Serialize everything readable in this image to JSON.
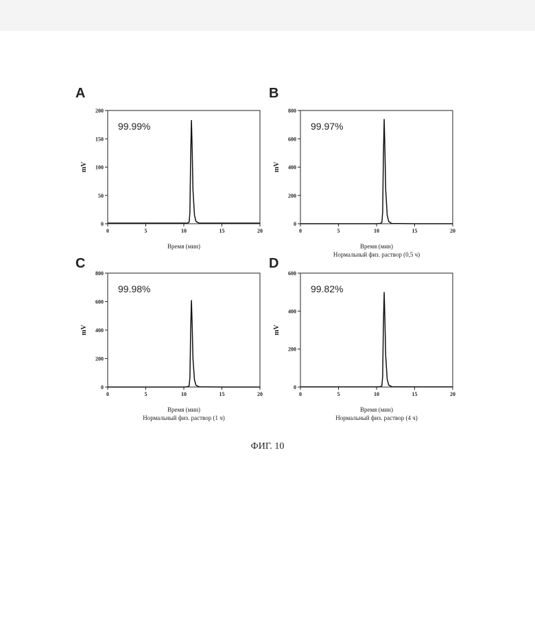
{
  "figure_caption": "ФИГ. 10",
  "chart_data": [
    {
      "type": "line",
      "panel_label": "A",
      "annotation": "99.99%",
      "x_label": "Время (мин)",
      "y_label": "mV",
      "x": [
        0,
        5,
        10,
        10.5,
        10.7,
        10.8,
        10.9,
        11,
        11.1,
        11.2,
        11.4,
        11.6,
        12,
        15,
        20
      ],
      "values": [
        1,
        1,
        1,
        1,
        3,
        20,
        120,
        183,
        130,
        60,
        15,
        4,
        1,
        1,
        1
      ],
      "color": "#111111",
      "xlim": [
        0,
        20
      ],
      "xticks": [
        0,
        5,
        10,
        15,
        20
      ],
      "ylim": [
        0,
        200
      ],
      "yticks": [
        0,
        50,
        100,
        150,
        200
      ]
    },
    {
      "type": "line",
      "panel_label": "B",
      "annotation": "99.97%",
      "x_label": "Время (мин)",
      "subtitle": "Нормальный физ. раствор (0,5 ч)",
      "y_label": "mV",
      "x": [
        0,
        5,
        10,
        10.5,
        10.7,
        10.8,
        10.9,
        11,
        11.1,
        11.2,
        11.4,
        11.6,
        12,
        15,
        20
      ],
      "values": [
        0,
        0,
        0,
        2,
        10,
        80,
        480,
        740,
        520,
        240,
        60,
        15,
        2,
        0,
        0
      ],
      "color": "#111111",
      "xlim": [
        0,
        20
      ],
      "xticks": [
        0,
        5,
        10,
        15,
        20
      ],
      "ylim": [
        0,
        800
      ],
      "yticks": [
        0,
        200,
        400,
        600,
        800
      ]
    },
    {
      "type": "line",
      "panel_label": "C",
      "annotation": "99.98%",
      "x_label": "Время (мин)",
      "subtitle": "Нормальный физ. раствор (1 ч)",
      "y_label": "mV",
      "x": [
        0,
        5,
        10,
        10.5,
        10.7,
        10.8,
        10.9,
        11,
        11.1,
        11.2,
        11.4,
        11.6,
        12,
        15,
        20
      ],
      "values": [
        0,
        0,
        0,
        2,
        8,
        65,
        400,
        610,
        430,
        200,
        50,
        12,
        2,
        0,
        0
      ],
      "color": "#111111",
      "xlim": [
        0,
        20
      ],
      "xticks": [
        0,
        5,
        10,
        15,
        20
      ],
      "ylim": [
        0,
        800
      ],
      "yticks": [
        0,
        200,
        400,
        600,
        800
      ]
    },
    {
      "type": "line",
      "panel_label": "D",
      "annotation": "99.82%",
      "x_label": "Время (мин)",
      "subtitle": "Нормальный физ. раствор (4 ч)",
      "y_label": "mV",
      "x": [
        0,
        5,
        10,
        10.5,
        10.7,
        10.8,
        10.9,
        11,
        11.1,
        11.2,
        11.4,
        11.6,
        12,
        15,
        20
      ],
      "values": [
        1,
        1,
        1,
        2,
        7,
        55,
        330,
        500,
        350,
        165,
        40,
        10,
        2,
        1,
        1
      ],
      "color": "#111111",
      "xlim": [
        0,
        20
      ],
      "xticks": [
        0,
        5,
        10,
        15,
        20
      ],
      "ylim": [
        0,
        600
      ],
      "yticks": [
        0,
        200,
        400,
        600
      ]
    }
  ]
}
